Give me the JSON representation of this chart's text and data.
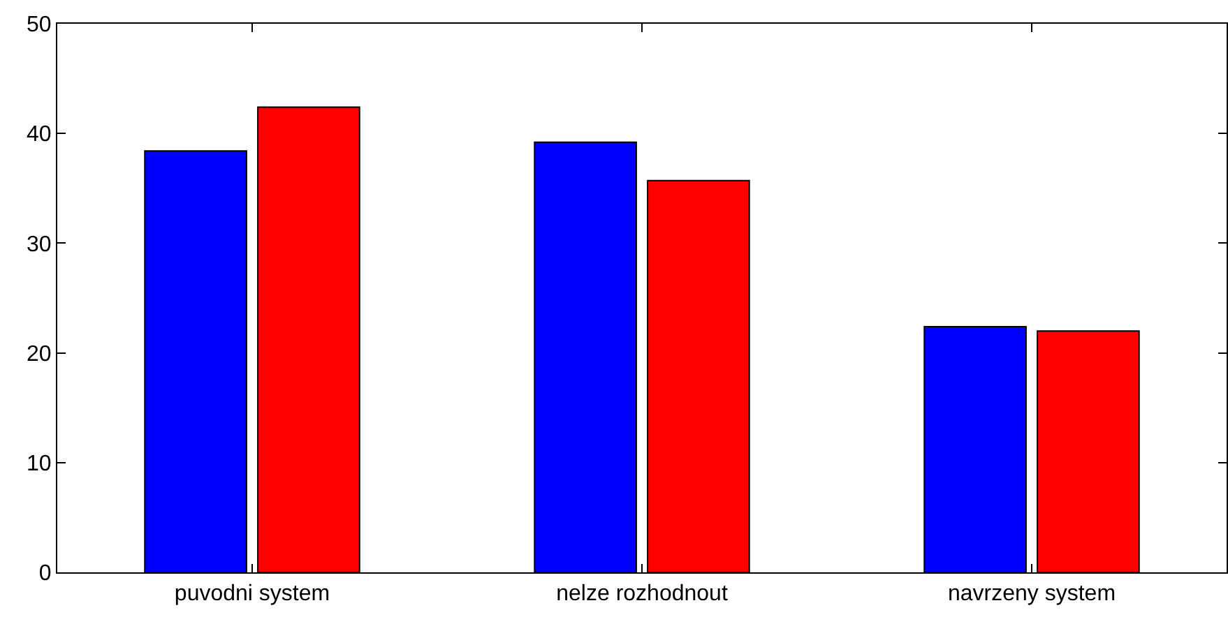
{
  "chart_data": {
    "type": "bar",
    "categories": [
      "puvodni system",
      "nelze rozhodnout",
      "navrzeny system"
    ],
    "series": [
      {
        "color": "#0000ff",
        "values": [
          38.4,
          39.2,
          22.4
        ]
      },
      {
        "color": "#ff0000",
        "values": [
          42.4,
          35.7,
          22.0
        ]
      }
    ],
    "ylim": [
      0,
      50
    ],
    "yticks": [
      0,
      10,
      20,
      30,
      40,
      50
    ]
  }
}
